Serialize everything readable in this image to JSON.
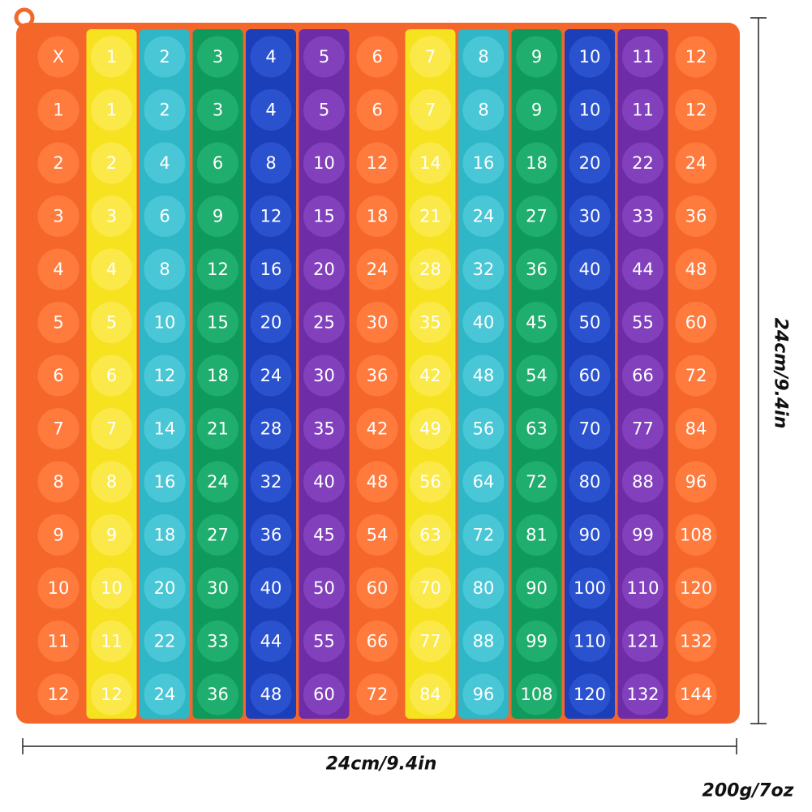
{
  "grid": {
    "rows": [
      [
        "X",
        1,
        2,
        3,
        4,
        5,
        6,
        7,
        8,
        9,
        10,
        11,
        12
      ],
      [
        1,
        1,
        2,
        3,
        4,
        5,
        6,
        7,
        8,
        9,
        10,
        11,
        12
      ],
      [
        2,
        2,
        4,
        6,
        8,
        10,
        12,
        14,
        16,
        18,
        20,
        22,
        24
      ],
      [
        3,
        3,
        6,
        9,
        12,
        15,
        18,
        21,
        24,
        27,
        30,
        33,
        36
      ],
      [
        4,
        4,
        8,
        12,
        16,
        20,
        24,
        28,
        32,
        36,
        40,
        44,
        48
      ],
      [
        5,
        5,
        10,
        15,
        20,
        25,
        30,
        35,
        40,
        45,
        50,
        55,
        60
      ],
      [
        6,
        6,
        12,
        18,
        24,
        30,
        36,
        42,
        48,
        54,
        60,
        66,
        72
      ],
      [
        7,
        7,
        14,
        21,
        28,
        35,
        42,
        49,
        56,
        63,
        70,
        77,
        84
      ],
      [
        8,
        8,
        16,
        24,
        32,
        40,
        48,
        56,
        64,
        72,
        80,
        88,
        96
      ],
      [
        9,
        9,
        18,
        27,
        36,
        45,
        54,
        63,
        72,
        81,
        90,
        99,
        108
      ],
      [
        10,
        10,
        20,
        30,
        40,
        50,
        60,
        70,
        80,
        90,
        100,
        110,
        120
      ],
      [
        11,
        11,
        22,
        33,
        44,
        55,
        66,
        77,
        88,
        99,
        110,
        121,
        132
      ],
      [
        12,
        12,
        24,
        36,
        48,
        60,
        72,
        84,
        96,
        108,
        120,
        132,
        144
      ]
    ]
  },
  "width_label": "24cm/9.4in",
  "height_label": "24cm/9.4in",
  "weight_label": "200g/7oz"
}
